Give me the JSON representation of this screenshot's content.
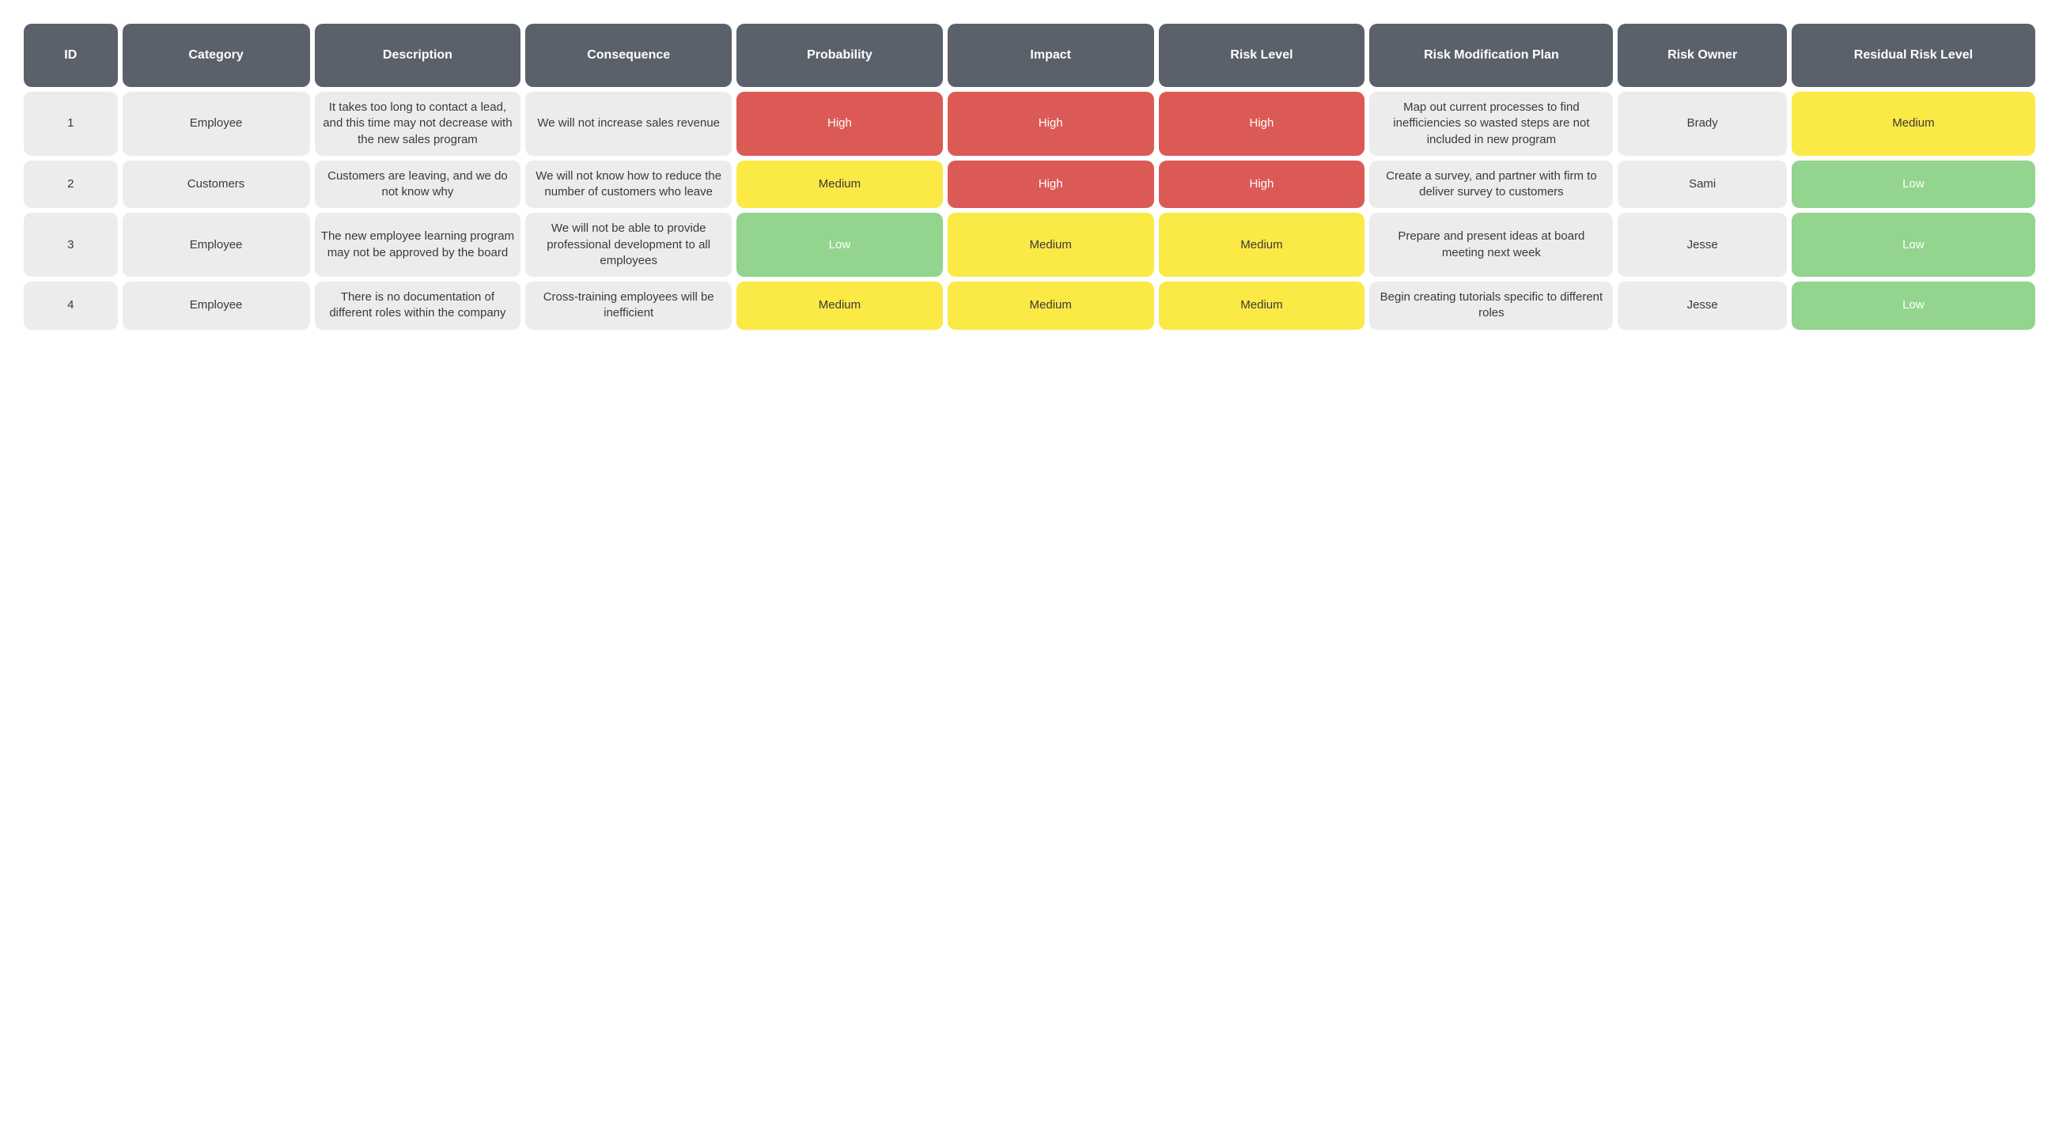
{
  "table": {
    "type": "table",
    "background_color": "#ffffff",
    "cell_gap": 6,
    "cell_border_radius": 10,
    "header_bg": "#5b616b",
    "header_text_color": "#ffffff",
    "body_bg": "#ececec",
    "body_text_color": "#3a3a3a",
    "header_fontsize": 16,
    "body_fontsize": 15,
    "font_family": "Arial",
    "risk_colors": {
      "High": {
        "bg": "#dc5a56",
        "text": "#ffffff"
      },
      "Medium": {
        "bg": "#fbe945",
        "text": "#3a3a3a"
      },
      "Low": {
        "bg": "#93d48e",
        "text": "#ffffff"
      }
    },
    "columns": [
      {
        "key": "id",
        "label": "ID",
        "width_fr": 0.5,
        "colored": false
      },
      {
        "key": "category",
        "label": "Category",
        "width_fr": 1.0,
        "colored": false
      },
      {
        "key": "description",
        "label": "Description",
        "width_fr": 1.1,
        "colored": false
      },
      {
        "key": "consequence",
        "label": "Consequence",
        "width_fr": 1.1,
        "colored": false
      },
      {
        "key": "probability",
        "label": "Probability",
        "width_fr": 1.1,
        "colored": true
      },
      {
        "key": "impact",
        "label": "Impact",
        "width_fr": 1.1,
        "colored": true
      },
      {
        "key": "risk_level",
        "label": "Risk Level",
        "width_fr": 1.1,
        "colored": true
      },
      {
        "key": "plan",
        "label": "Risk Modification Plan",
        "width_fr": 1.3,
        "colored": false
      },
      {
        "key": "owner",
        "label": "Risk Owner",
        "width_fr": 0.9,
        "colored": false
      },
      {
        "key": "residual",
        "label": "Residual Risk Level",
        "width_fr": 1.3,
        "colored": true
      }
    ],
    "rows": [
      {
        "id": "1",
        "category": "Employee",
        "description": "It takes too long to contact a lead, and this time may not decrease with the new sales program",
        "consequence": "We will not increase sales revenue",
        "probability": "High",
        "impact": "High",
        "risk_level": "High",
        "plan": "Map out current processes to find inefficiencies so wasted steps are not included in new program",
        "owner": "Brady",
        "residual": "Medium"
      },
      {
        "id": "2",
        "category": "Customers",
        "description": "Customers are leaving, and we do not know why",
        "consequence": "We will not know how to reduce the number of customers who leave",
        "probability": "Medium",
        "impact": "High",
        "risk_level": "High",
        "plan": "Create a survey, and partner with firm to deliver survey to customers",
        "owner": "Sami",
        "residual": "Low"
      },
      {
        "id": "3",
        "category": "Employee",
        "description": "The new employee learning program may not be approved by the board",
        "consequence": "We will not be able to provide professional development to all employees",
        "probability": "Low",
        "impact": "Medium",
        "risk_level": "Medium",
        "plan": "Prepare and present ideas at board meeting next week",
        "owner": "Jesse",
        "residual": "Low"
      },
      {
        "id": "4",
        "category": "Employee",
        "description": "There is no documentation of different roles within the company",
        "consequence": "Cross-training employees will be inefficient",
        "probability": "Medium",
        "impact": "Medium",
        "risk_level": "Medium",
        "plan": "Begin creating tutorials specific to different roles",
        "owner": "Jesse",
        "residual": "Low"
      }
    ]
  }
}
